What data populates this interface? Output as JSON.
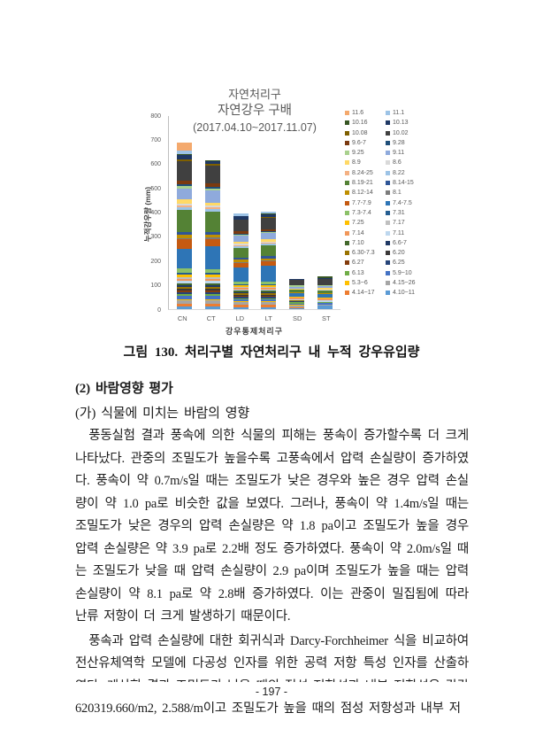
{
  "page": {
    "footer": "- 197 -"
  },
  "figure_caption": "그림 130. 처리구별 자연처리구 내 누적 강우유입량",
  "chart_data": {
    "type": "bar",
    "stacked": true,
    "title_lines": [
      "자연처리구",
      "자연강우 구배",
      "(2017.04.10~2017.11.07)"
    ],
    "xlabel": "강우통제처리구",
    "ylabel": "누적강우량 (mm)",
    "ylim": [
      0,
      800
    ],
    "ytick_step": 100,
    "grid": false,
    "legend_position": "right",
    "categories": [
      "CN",
      "CT",
      "LD",
      "LT",
      "SD",
      "ST"
    ],
    "approx_totals_mm": [
      693,
      620,
      405,
      410,
      128,
      140
    ],
    "legend_order": [
      "11.6",
      "11.1",
      "10.16",
      "10.13",
      "10.08",
      "10.02",
      "9.6-7",
      "9.28",
      "9.25",
      "9.11",
      "8.9",
      "8.6",
      "8.24-25",
      "8.22",
      "8.19-21",
      "8.14-15",
      "8.12-14",
      "8.1",
      "7.7-7.9",
      "7.4-7.5",
      "7.3-7.4",
      "7.31",
      "7.25",
      "7.17",
      "7.14",
      "7.11",
      "7.10",
      "6.6-7",
      "6.30-7.3",
      "6.20",
      "6.27",
      "6.25",
      "6.13",
      "5.9~10",
      "5.3~6",
      "4.15~26",
      "4.14~17",
      "4.10~11"
    ],
    "colors": {
      "11.6": "#F4A96D",
      "11.1": "#9DC3E6",
      "10.16": "#375623",
      "10.13": "#1F3864",
      "10.08": "#7F6000",
      "10.02": "#404040",
      "9.6-7": "#7B3A10",
      "9.28": "#1F4E79",
      "9.25": "#A9D18E",
      "9.11": "#8FAADC",
      "8.9": "#FFD966",
      "8.6": "#D9D9D9",
      "8.24-25": "#F4B183",
      "8.22": "#9DC3E6",
      "8.19-21": "#548235",
      "8.14-15": "#2F5597",
      "8.12-14": "#BF8F00",
      "8.1": "#7B7B7B",
      "7.7-7.9": "#C55A11",
      "7.4-7.5": "#2E75B6",
      "7.3-7.4": "#8CC168",
      "7.31": "#255E91",
      "7.25": "#FFC000",
      "7.17": "#BFBFBF",
      "7.14": "#F1975A",
      "7.11": "#BDD7EE",
      "7.10": "#43682B",
      "6.6-7": "#1F3864",
      "6.30-7.3": "#997300",
      "6.20": "#3B3838",
      "6.27": "#843C0C",
      "6.25": "#264478",
      "6.13": "#70AD47",
      "5.9~10": "#4472C4",
      "5.3~6": "#FFC000",
      "4.15~26": "#A5A5A5",
      "4.14~17": "#ED7D31",
      "4.10~11": "#5B9BD5"
    },
    "series": [
      {
        "name": "4.10~11",
        "values": [
          10,
          10,
          8,
          8,
          4,
          14
        ]
      },
      {
        "name": "4.14~17",
        "values": [
          12,
          12,
          10,
          10,
          4,
          0
        ]
      },
      {
        "name": "4.15~26",
        "values": [
          14,
          14,
          10,
          10,
          5,
          4
        ]
      },
      {
        "name": "5.3~6",
        "values": [
          6,
          6,
          4,
          4,
          4,
          0
        ]
      },
      {
        "name": "5.9~10",
        "values": [
          12,
          12,
          8,
          8,
          6,
          8
        ]
      },
      {
        "name": "6.13",
        "values": [
          8,
          8,
          6,
          6,
          5,
          5
        ]
      },
      {
        "name": "6.25",
        "values": [
          8,
          8,
          5,
          5,
          4,
          0
        ]
      },
      {
        "name": "6.27",
        "values": [
          6,
          6,
          4,
          4,
          0,
          0
        ]
      },
      {
        "name": "6.20",
        "values": [
          7,
          7,
          5,
          5,
          0,
          0
        ]
      },
      {
        "name": "6.30-7.3",
        "values": [
          9,
          9,
          6,
          6,
          4,
          0
        ]
      },
      {
        "name": "6.6-7",
        "values": [
          8,
          8,
          5,
          5,
          0,
          0
        ]
      },
      {
        "name": "7.10",
        "values": [
          8,
          8,
          5,
          5,
          0,
          0
        ]
      },
      {
        "name": "7.11",
        "values": [
          10,
          10,
          6,
          6,
          5,
          6
        ]
      },
      {
        "name": "7.14",
        "values": [
          8,
          8,
          5,
          5,
          6,
          6
        ]
      },
      {
        "name": "7.17",
        "values": [
          6,
          6,
          4,
          4,
          0,
          0
        ]
      },
      {
        "name": "7.25",
        "values": [
          12,
          12,
          8,
          8,
          5,
          5
        ]
      },
      {
        "name": "7.31",
        "values": [
          8,
          8,
          5,
          5,
          0,
          0
        ]
      },
      {
        "name": "7.3-7.4",
        "values": [
          16,
          14,
          10,
          10,
          0,
          0
        ]
      },
      {
        "name": "7.4-7.5",
        "values": [
          80,
          95,
          60,
          65,
          12,
          14
        ]
      },
      {
        "name": "7.7-7.9",
        "values": [
          40,
          30,
          18,
          18,
          0,
          0
        ]
      },
      {
        "name": "8.1",
        "values": [
          6,
          6,
          4,
          4,
          0,
          0
        ]
      },
      {
        "name": "8.12-14",
        "values": [
          14,
          12,
          10,
          10,
          5,
          4
        ]
      },
      {
        "name": "8.14-15",
        "values": [
          12,
          10,
          8,
          8,
          0,
          0
        ]
      },
      {
        "name": "8.19-21",
        "values": [
          90,
          85,
          40,
          45,
          10,
          12
        ]
      },
      {
        "name": "8.22",
        "values": [
          10,
          10,
          6,
          6,
          0,
          0
        ]
      },
      {
        "name": "8.24-25",
        "values": [
          10,
          8,
          6,
          6,
          0,
          0
        ]
      },
      {
        "name": "8.6",
        "values": [
          8,
          6,
          4,
          4,
          0,
          4
        ]
      },
      {
        "name": "8.9",
        "values": [
          16,
          14,
          10,
          10,
          6,
          5
        ]
      },
      {
        "name": "9.11",
        "values": [
          46,
          50,
          24,
          24,
          8,
          8
        ]
      },
      {
        "name": "9.25",
        "values": [
          10,
          8,
          5,
          5,
          5,
          5
        ]
      },
      {
        "name": "9.28",
        "values": [
          7,
          6,
          4,
          4,
          0,
          0
        ]
      },
      {
        "name": "9.6-7",
        "values": [
          16,
          14,
          8,
          8,
          0,
          0
        ]
      },
      {
        "name": "10.02",
        "values": [
          80,
          75,
          48,
          48,
          22,
          24
        ]
      },
      {
        "name": "10.08",
        "values": [
          6,
          5,
          3,
          3,
          0,
          0
        ]
      },
      {
        "name": "10.13",
        "values": [
          18,
          12,
          12,
          12,
          6,
          5
        ]
      },
      {
        "name": "10.16",
        "values": [
          6,
          4,
          3,
          3,
          0,
          5
        ]
      },
      {
        "name": "11.1",
        "values": [
          14,
          0,
          8,
          8,
          0,
          0
        ]
      },
      {
        "name": "11.6",
        "values": [
          34,
          0,
          0,
          0,
          0,
          0
        ]
      }
    ]
  },
  "text": {
    "heading2": "(2) 바람영향 평가",
    "heading3": "(가) 식물에 미치는 바람의 영향",
    "para1": "풍동실험 결과 풍속에 의한 식물의 피해는 풍속이 증가할수록 더 크게 나타났다. 관중의 조밀도가 높을수록 고풍속에서 압력 손실량이 증가하였다. 풍속이 약 0.7m/s일 때는 조밀도가 낮은 경우와 높은 경우 압력 손실량이 약 1.0 pa로 비슷한 값을 보였다. 그러나, 풍속이 약 1.4m/s일 때는 조밀도가 낮은 경우의 압력 손실량은 약 1.8 pa이고 조밀도가 높을 경우 압력 손실량은 약 3.9 pa로 2.2배 정도 증가하였다. 풍속이 약 2.0m/s일 때는 조밀도가 낮을 때 압력 손실량이 2.9 pa이며 조밀도가 높을 때는 압력 손실량이 약 8.1 pa로 약 2.8배 증가하였다. 이는 관중이 밀집됨에 따라 난류 저항이 더 크게 발생하기 때문이다.",
    "para2": "풍속과 압력 손실량에 대한 회귀식과 Darcy-Forchheimer 식을 비교하여 전산유체역학 모델에 다공성 인자를 위한 공력 저항 특성 인자를 산출하였다. 계산한 결과 조밀도가 낮을 때의 점성 저항성과 내부 저항성은 각각 620319.660/m2, 2.588/m이고 조밀도가 높을 때의 점성 저항성과 내부 저"
  }
}
